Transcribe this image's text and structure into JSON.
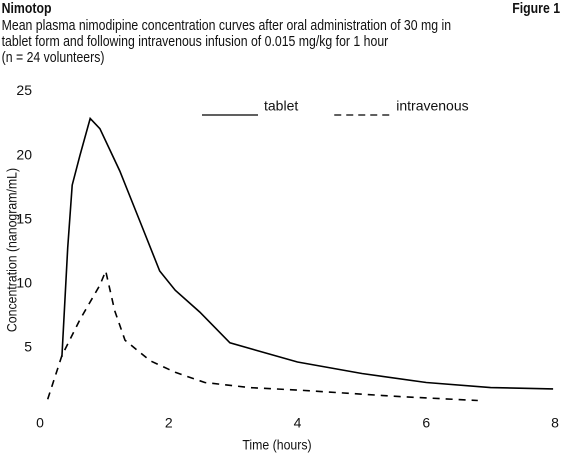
{
  "chart_data": {
    "type": "line",
    "title": "Nimotop",
    "figure_label": "Figure 1",
    "subtitle": [
      "Mean plasma nimodipine concentration curves after oral administration of 30 mg in",
      "tablet form and following intravenous infusion of 0.015 mg/kg for 1 hour",
      "(n = 24 volunteers)"
    ],
    "x_label": "Time (hours)",
    "y_label": "Concentration (nanogram/mL)",
    "xlim": [
      0,
      8
    ],
    "xticks": [
      0,
      2,
      4,
      6,
      8
    ],
    "ylim": [
      0,
      25
    ],
    "yticks": [
      5,
      10,
      15,
      20,
      25
    ],
    "grid": false,
    "series": [
      {
        "name": "tablet",
        "color": "#000000",
        "line_style": "solid",
        "x": [
          0.34,
          0.43,
          0.5,
          0.62,
          0.78,
          0.93,
          1.24,
          1.55,
          1.86,
          2.1,
          2.48,
          2.95,
          4.0,
          5.0,
          6.0,
          7.0,
          7.97
        ],
        "values": [
          4.3,
          12.8,
          17.7,
          20.0,
          22.9,
          22.1,
          18.8,
          14.9,
          11.0,
          9.5,
          7.8,
          5.4,
          3.9,
          3.0,
          2.3,
          1.9,
          1.8
        ]
      },
      {
        "name": "intravenous",
        "color": "#000000",
        "line_style": "dashed",
        "x": [
          0.12,
          0.34,
          0.62,
          0.93,
          1.02,
          1.16,
          1.32,
          1.71,
          2.1,
          2.56,
          3.26,
          4.04,
          5.59,
          6.8
        ],
        "values": [
          1.0,
          4.4,
          7.2,
          9.9,
          11.0,
          7.9,
          5.6,
          4.0,
          3.1,
          2.3,
          1.9,
          1.7,
          1.2,
          0.9
        ]
      }
    ]
  }
}
